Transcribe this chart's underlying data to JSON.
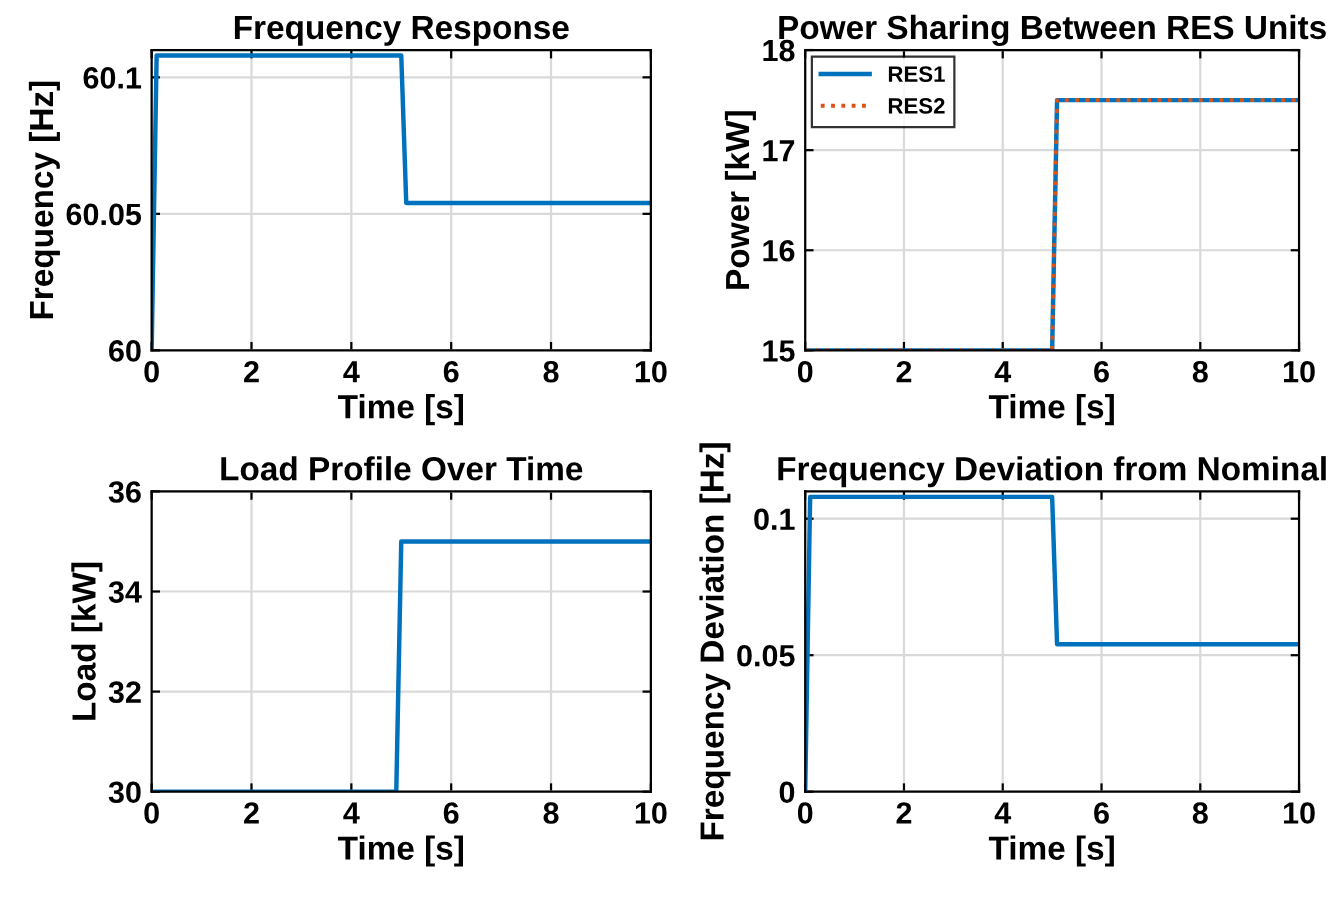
{
  "chart_data": [
    {
      "type": "line",
      "title": "Frequency Response",
      "xlabel": "Time [s]",
      "ylabel": "Frequency [Hz]",
      "xlim": [
        0,
        10
      ],
      "ylim": [
        60,
        60.11
      ],
      "xticks": [
        0,
        2,
        4,
        6,
        8,
        10
      ],
      "yticks": [
        60,
        60.05,
        60.1
      ],
      "grid": true,
      "legend": false,
      "series": [
        {
          "color": "#0072bd",
          "line_style": "solid",
          "x": [
            0,
            0.1,
            5,
            5.1,
            10
          ],
          "values": [
            60,
            60.108,
            60.108,
            60.054,
            60.054
          ]
        }
      ]
    },
    {
      "type": "line",
      "title": "Power Sharing Between RES Units",
      "xlabel": "Time [s]",
      "ylabel": "Power [kW]",
      "xlim": [
        0,
        10
      ],
      "ylim": [
        15,
        18
      ],
      "xticks": [
        0,
        2,
        4,
        6,
        8,
        10
      ],
      "yticks": [
        15,
        16,
        17,
        18
      ],
      "grid": true,
      "legend": "top left",
      "series": [
        {
          "name": "RES1",
          "color": "#0072bd",
          "line_style": "solid",
          "x": [
            0,
            5,
            5.1,
            10
          ],
          "values": [
            15,
            15,
            17.5,
            17.5
          ]
        },
        {
          "name": "RES2",
          "color": "#d95319",
          "line_style": "dotted",
          "x": [
            0,
            5,
            5.1,
            10
          ],
          "values": [
            15,
            15,
            17.5,
            17.5
          ]
        }
      ]
    },
    {
      "type": "line",
      "title": "Load Profile Over Time",
      "xlabel": "Time [s]",
      "ylabel": "Load [kW]",
      "xlim": [
        0,
        10
      ],
      "ylim": [
        30,
        36
      ],
      "xticks": [
        0,
        2,
        4,
        6,
        8,
        10
      ],
      "yticks": [
        30,
        32,
        34,
        36
      ],
      "grid": true,
      "legend": false,
      "series": [
        {
          "color": "#0072bd",
          "line_style": "solid",
          "x": [
            0,
            4.9,
            5,
            10
          ],
          "values": [
            30,
            30,
            35,
            35
          ]
        }
      ]
    },
    {
      "type": "line",
      "title": "Frequency Deviation from Nominal",
      "xlabel": "Time [s]",
      "ylabel": "Frequency Deviation [Hz]",
      "xlim": [
        0,
        10
      ],
      "ylim": [
        0,
        0.11
      ],
      "xticks": [
        0,
        2,
        4,
        6,
        8,
        10
      ],
      "yticks": [
        0,
        0.05,
        0.1
      ],
      "grid": true,
      "legend": false,
      "series": [
        {
          "color": "#0072bd",
          "line_style": "solid",
          "x": [
            0,
            0.1,
            5,
            5.1,
            10
          ],
          "values": [
            0,
            0.108,
            0.108,
            0.054,
            0.054
          ]
        }
      ]
    }
  ]
}
